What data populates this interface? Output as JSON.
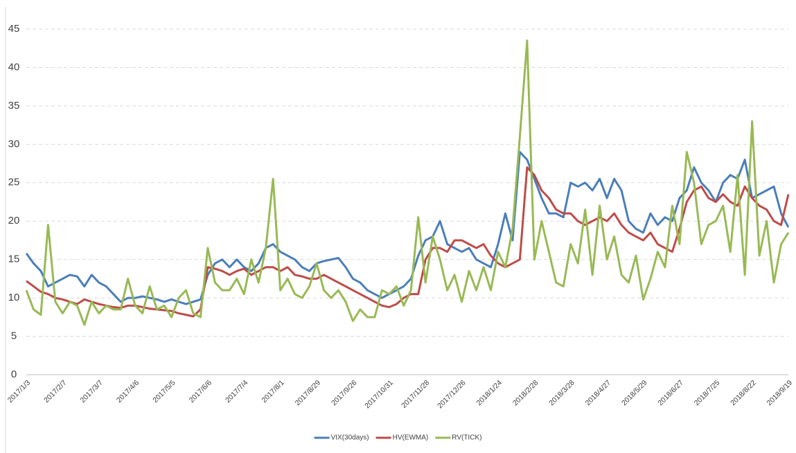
{
  "chart_data": {
    "type": "line",
    "categories": [
      "2017/1/3",
      null,
      null,
      null,
      null,
      "2017/2/7",
      null,
      null,
      null,
      null,
      "2017/3/7",
      null,
      null,
      null,
      null,
      "2017/4/6",
      null,
      null,
      null,
      null,
      "2017/5/5",
      null,
      null,
      null,
      null,
      "2017/6/6",
      null,
      null,
      null,
      null,
      "2017/7/4",
      null,
      null,
      null,
      null,
      "2017/8/1",
      null,
      null,
      null,
      null,
      "2017/8/29",
      null,
      null,
      null,
      null,
      "2017/9/26",
      null,
      null,
      null,
      null,
      "2017/10/31",
      null,
      null,
      null,
      null,
      "2017/11/28",
      null,
      null,
      null,
      null,
      "2017/12/26",
      null,
      null,
      null,
      null,
      "2018/1/24",
      null,
      null,
      null,
      null,
      "2018/2/28",
      null,
      null,
      null,
      null,
      "2018/3/28",
      null,
      null,
      null,
      null,
      "2018/4/27",
      null,
      null,
      null,
      null,
      "2018/5/29",
      null,
      null,
      null,
      null,
      "2018/6/27",
      null,
      null,
      null,
      null,
      "2018/7/25",
      null,
      null,
      null,
      null,
      "2018/8/22",
      null,
      null,
      null,
      null,
      "2018/9/19"
    ],
    "series": [
      {
        "name": "VIX(30days)",
        "color": "#4a7ebb",
        "values": [
          15.8,
          14.5,
          13.5,
          11.5,
          12,
          12.5,
          13,
          12.8,
          11.5,
          13,
          12,
          11.5,
          10.5,
          9.5,
          10,
          10,
          10.2,
          10,
          9.8,
          9.5,
          9.8,
          9.5,
          9.2,
          9.5,
          9.8,
          13,
          14.5,
          15,
          14,
          15,
          14,
          13.5,
          14.5,
          16.5,
          17,
          16,
          15.5,
          15,
          14,
          13.5,
          14.5,
          14.8,
          15,
          15.2,
          14,
          12.5,
          12,
          11,
          10.5,
          10,
          10.5,
          11,
          11.5,
          12.5,
          15.5,
          17.5,
          18,
          20,
          17,
          16.5,
          16,
          16.5,
          15,
          14.5,
          14,
          17,
          21,
          17.5,
          29,
          28,
          25.5,
          23,
          21,
          21,
          20.5,
          25,
          24.5,
          25,
          24,
          25.5,
          23,
          25.5,
          24,
          20,
          19,
          18.5,
          21,
          19.5,
          20.5,
          20,
          23,
          24,
          27,
          25,
          24,
          22.5,
          25,
          26,
          25.5,
          28,
          23,
          23.5,
          24,
          24.5,
          21,
          19.2
        ]
      },
      {
        "name": "HV(EWMA)",
        "color": "#be4b48",
        "values": [
          12.2,
          11.5,
          10.8,
          10.5,
          10,
          9.8,
          9.5,
          9.2,
          9.8,
          9.5,
          9.2,
          9,
          8.8,
          8.7,
          9,
          9,
          8.8,
          8.6,
          8.5,
          8.4,
          8.3,
          8,
          7.8,
          7.6,
          8.5,
          14,
          13.8,
          13.5,
          13,
          13.5,
          13.8,
          13,
          13.5,
          14,
          14,
          13.5,
          14,
          13,
          12.8,
          12.5,
          12.5,
          13,
          12.5,
          12,
          11.5,
          11,
          10.5,
          10,
          9.5,
          9,
          8.8,
          9.2,
          10,
          10.5,
          10.5,
          15,
          16.5,
          16.5,
          16,
          17.5,
          17.5,
          17,
          16.5,
          17,
          15.5,
          14.5,
          14,
          14.5,
          15,
          27,
          26,
          24,
          23,
          21.5,
          21,
          21,
          20,
          19.5,
          20,
          20.5,
          20,
          21,
          19.5,
          18.5,
          18,
          17.5,
          18.5,
          17,
          16.5,
          16,
          19,
          22.5,
          24,
          24.5,
          23,
          22.5,
          23.5,
          22.5,
          22,
          24.5,
          23,
          22,
          21.5,
          20,
          19.5,
          23.5
        ]
      },
      {
        "name": "RV(TICK)",
        "color": "#98b954",
        "values": [
          11,
          8.5,
          7.8,
          19.5,
          9.5,
          8,
          9.5,
          9,
          6.5,
          9.5,
          8,
          9,
          8.5,
          8.5,
          12.5,
          9,
          8,
          11.5,
          8.5,
          9,
          7.5,
          10,
          11,
          8,
          7.5,
          16.5,
          12,
          11,
          11,
          12.5,
          10.5,
          15,
          12,
          16.5,
          25.5,
          11,
          12.5,
          10.5,
          10,
          11.5,
          14.5,
          11,
          10,
          11,
          9.5,
          7,
          8.5,
          7.5,
          7.5,
          11,
          10.5,
          11.5,
          9,
          11,
          20.5,
          12,
          18,
          15,
          11,
          13,
          9.5,
          13.5,
          11,
          14,
          11,
          16,
          14,
          19,
          31,
          43.5,
          15,
          20,
          16,
          12,
          11.5,
          17,
          14.5,
          21.5,
          13,
          22,
          15,
          18,
          13,
          12,
          15.5,
          9.8,
          12.5,
          16,
          14,
          22,
          17,
          29,
          25,
          17,
          19.5,
          20,
          22,
          16,
          26,
          13,
          33,
          15.5,
          20,
          12,
          17,
          18.5
        ]
      }
    ],
    "ylim": [
      0,
      45
    ],
    "yticks": [
      0,
      5,
      10,
      15,
      20,
      25,
      30,
      35,
      40,
      45
    ],
    "grid": true,
    "legend": "bottom"
  }
}
